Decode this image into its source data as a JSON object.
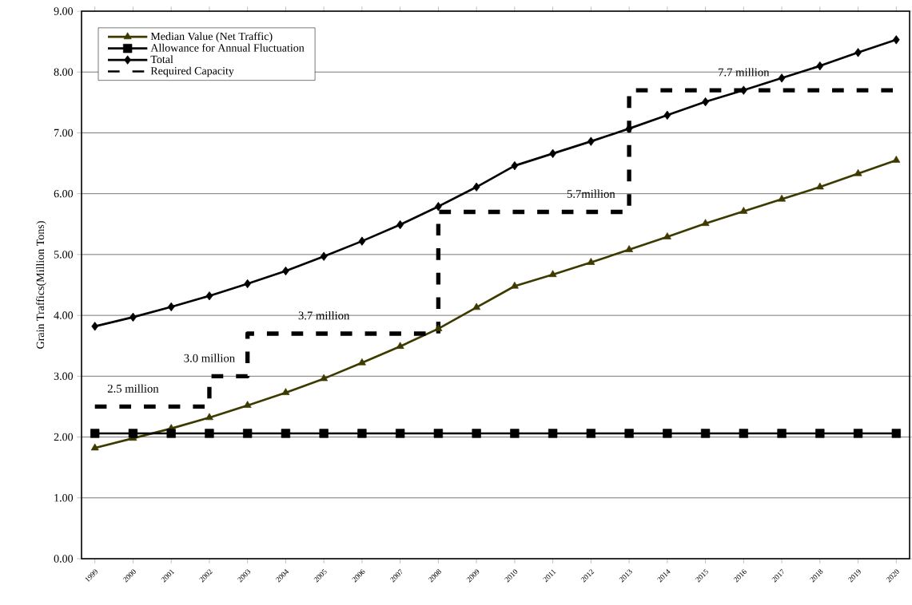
{
  "chart_data": {
    "type": "line",
    "ylabel": "Grain Traffics(Million Tons)",
    "categories": [
      "1999",
      "2000",
      "2001",
      "2002",
      "2003",
      "2004",
      "2005",
      "2006",
      "2007",
      "2008",
      "2009",
      "2010",
      "2011",
      "2012",
      "2013",
      "2014",
      "2015",
      "2016",
      "2017",
      "2018",
      "2019",
      "2020"
    ],
    "series": [
      {
        "name": "Median Value (Net Traffic)",
        "color": "#3d3a00",
        "marker": "triangle",
        "values": [
          1.82,
          1.98,
          2.14,
          2.32,
          2.52,
          2.73,
          2.96,
          3.22,
          3.49,
          3.78,
          4.13,
          4.48,
          4.67,
          4.87,
          5.08,
          5.29,
          5.51,
          5.71,
          5.91,
          6.11,
          6.33,
          6.55
        ]
      },
      {
        "name": "Allowance for Annual Fluctuation",
        "color": "#000000",
        "marker": "square",
        "values": [
          2.06,
          2.06,
          2.06,
          2.06,
          2.06,
          2.06,
          2.06,
          2.06,
          2.06,
          2.06,
          2.06,
          2.06,
          2.06,
          2.06,
          2.06,
          2.06,
          2.06,
          2.06,
          2.06,
          2.06,
          2.06,
          2.06
        ]
      },
      {
        "name": "Total",
        "color": "#000000",
        "marker": "diamond",
        "values": [
          3.82,
          3.97,
          4.14,
          4.32,
          4.52,
          4.73,
          4.97,
          5.22,
          5.49,
          5.79,
          6.11,
          6.46,
          6.66,
          6.86,
          7.07,
          7.29,
          7.51,
          7.7,
          7.9,
          8.1,
          8.32,
          8.53
        ]
      },
      {
        "name": "Required Capacity",
        "color": "#000000",
        "type": "step",
        "marker": "none",
        "line_style": "dashed",
        "values": [
          2.5,
          2.5,
          2.5,
          3.0,
          3.7,
          3.7,
          3.7,
          3.7,
          3.7,
          5.7,
          5.7,
          5.7,
          5.7,
          5.7,
          7.7,
          7.7,
          7.7,
          7.7,
          7.7,
          7.7,
          7.7,
          7.7
        ]
      }
    ],
    "ylim": [
      0,
      9
    ],
    "yticks": [
      {
        "value": 0,
        "label": "0.00"
      },
      {
        "value": 1,
        "label": "1.00"
      },
      {
        "value": 2,
        "label": "2.00"
      },
      {
        "value": 3,
        "label": "3.00"
      },
      {
        "value": 4,
        "label": "4.00"
      },
      {
        "value": 5,
        "label": "5.00"
      },
      {
        "value": 6,
        "label": "6.00"
      },
      {
        "value": 7,
        "label": "7.00"
      },
      {
        "value": 8,
        "label": "8.00"
      },
      {
        "value": 9,
        "label": "9.00"
      }
    ],
    "grid": "y",
    "legend": "top left",
    "annotations": [
      {
        "text": "2.5 million",
        "x": "2000",
        "y": 2.5
      },
      {
        "text": "3.0 million",
        "x": "2002",
        "y": 3.0
      },
      {
        "text": "3.7 million",
        "x": "2005",
        "y": 3.7
      },
      {
        "text": "5.7million",
        "x": "2012",
        "y": 5.7
      },
      {
        "text": "7.7 million",
        "x": "2016",
        "y": 7.7
      }
    ]
  }
}
